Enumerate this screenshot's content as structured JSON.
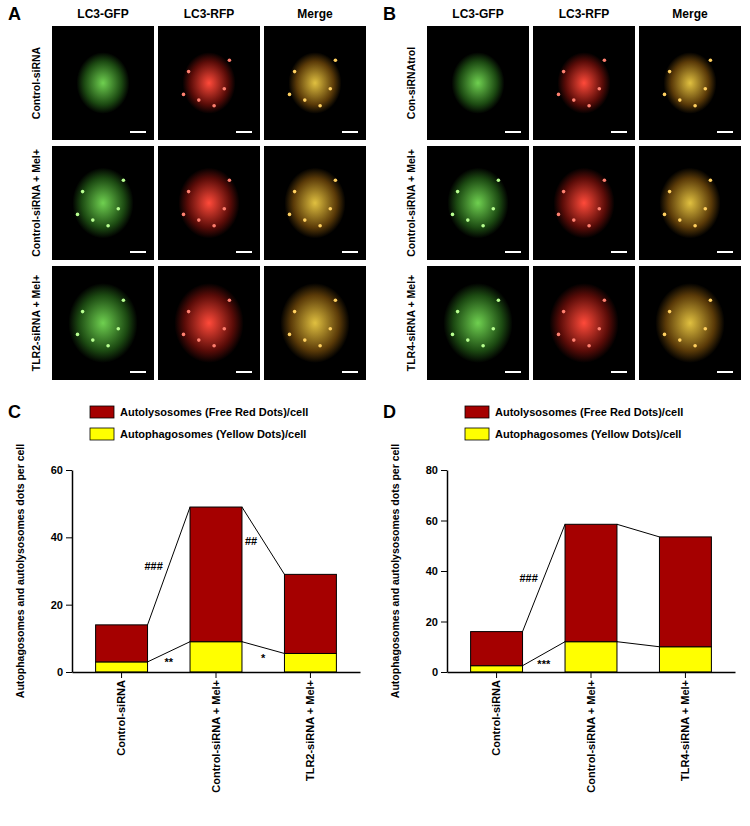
{
  "figure_panels": [
    {
      "label": "A",
      "columns": [
        "LC3-GFP",
        "LC3-RFP",
        "Merge"
      ],
      "rows": [
        "Control-siRNA",
        "Control-siRNA + Mel+",
        "TLR2-siRNA + Mel+"
      ]
    },
    {
      "label": "B",
      "columns": [
        "LC3-GFP",
        "LC3-RFP",
        "Merge"
      ],
      "rows": [
        "Con-siRNAtrol",
        "Control-siRNA + Mel+",
        "TLR4-siRNA + Mel+"
      ]
    }
  ],
  "chart_data": [
    {
      "type": "bar",
      "title": "C",
      "stacked": true,
      "legend": "top-left",
      "y_label": "Autophagosomes and autolysosomes dots per cell",
      "categories": [
        "Control-siRNA",
        "Control-siRNA + Mel+",
        "TLR2-siRNA + Mel+"
      ],
      "series": [
        {
          "name": "Autophagosomes (Yellow Dots)/cell",
          "color": "#FFFF00",
          "values": [
            3,
            9,
            5.5
          ]
        },
        {
          "name": "Autolysosomes (Free Red Dots)/cell",
          "color": "#A50000",
          "values": [
            11,
            40,
            23.5
          ]
        }
      ],
      "ylim": [
        0,
        60
      ],
      "yticks": [
        0,
        20,
        40,
        60
      ],
      "annotations": [
        {
          "text": "###",
          "from": "Control-siRNA",
          "to": "Control-siRNA + Mel+",
          "series": "Autolysosomes (Free Red Dots)/cell"
        },
        {
          "text": "**",
          "from": "Control-siRNA",
          "to": "Control-siRNA + Mel+",
          "series": "Autophagosomes (Yellow Dots)/cell"
        },
        {
          "text": "##",
          "from": "Control-siRNA + Mel+",
          "to": "TLR2-siRNA + Mel+",
          "series": "Autolysosomes (Free Red Dots)/cell"
        },
        {
          "text": "*",
          "from": "Control-siRNA + Mel+",
          "to": "TLR2-siRNA + Mel+",
          "series": "Autophagosomes (Yellow Dots)/cell"
        }
      ]
    },
    {
      "type": "bar",
      "title": "D",
      "stacked": true,
      "legend": "top-left",
      "y_label": "Autophagosomes and autolysosomes dots per cell",
      "categories": [
        "Control-siRNA",
        "Control-siRNA + Mel+",
        "TLR4-siRNA + Mel+"
      ],
      "series": [
        {
          "name": "Autophagosomes (Yellow Dots)/cell",
          "color": "#FFFF00",
          "values": [
            2.5,
            12,
            10
          ]
        },
        {
          "name": "Autolysosomes (Free Red Dots)/cell",
          "color": "#A50000",
          "values": [
            13.5,
            46.5,
            43.5
          ]
        }
      ],
      "ylim": [
        0,
        80
      ],
      "yticks": [
        0,
        20,
        40,
        60,
        80
      ],
      "annotations": [
        {
          "text": "###",
          "from": "Control-siRNA",
          "to": "Control-siRNA + Mel+",
          "series": "Autolysosomes (Free Red Dots)/cell"
        },
        {
          "text": "***",
          "from": "Control-siRNA",
          "to": "Control-siRNA + Mel+",
          "series": "Autophagosomes (Yellow Dots)/cell"
        }
      ]
    }
  ]
}
